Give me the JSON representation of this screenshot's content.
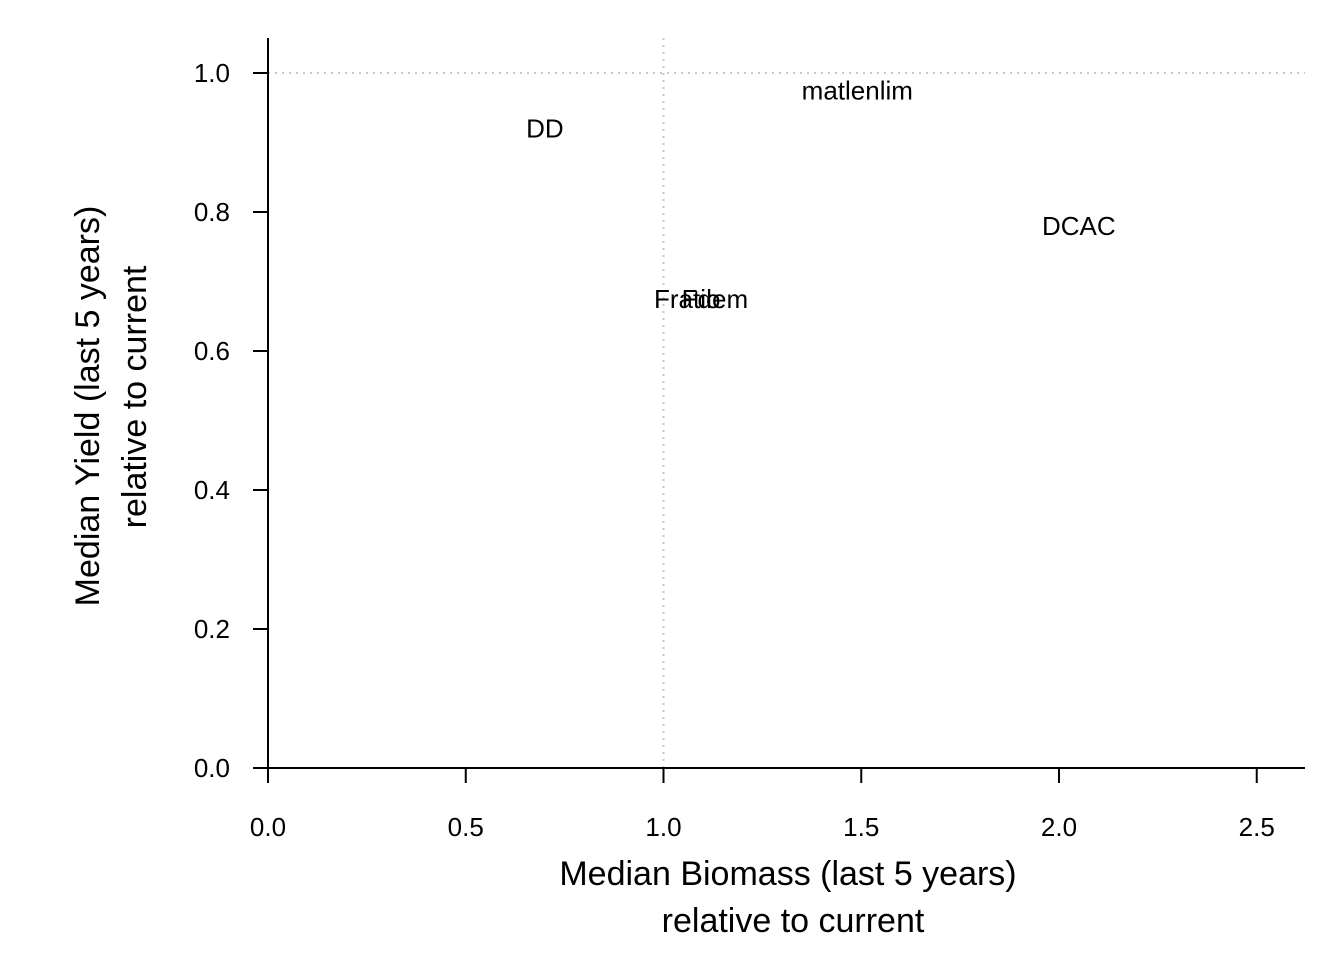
{
  "chart_data": {
    "type": "scatter",
    "title": "",
    "xlabel_lines": [
      "Median Biomass (last 5 years)",
      "relative to current"
    ],
    "ylabel_lines": [
      "Median Yield (last 5 years)",
      "relative to current"
    ],
    "xlim": [
      0,
      2.62
    ],
    "ylim": [
      0,
      1.05
    ],
    "xticks": [
      0,
      0.5,
      1,
      1.5,
      2,
      2.5
    ],
    "xtick_labels": [
      "0.0",
      "0.5",
      "1.0",
      "1.5",
      "2.0",
      "2.5"
    ],
    "yticks": [
      0,
      0.2,
      0.4,
      0.6,
      0.8,
      1.0
    ],
    "ytick_labels": [
      "0.0",
      "0.2",
      "0.4",
      "0.6",
      "0.8",
      "1.0"
    ],
    "reference_lines": {
      "x": 1.0,
      "y": 1.0,
      "style": "dotted",
      "color": "#c8c8c8"
    },
    "points": [
      {
        "label": "DD",
        "x": 0.7,
        "y": 0.92
      },
      {
        "label": "matlenlim",
        "x": 1.49,
        "y": 0.975
      },
      {
        "label": "DCAC",
        "x": 2.05,
        "y": 0.78
      },
      {
        "label": "Fratio",
        "x": 1.06,
        "y": 0.675
      },
      {
        "label": "Fdem",
        "x": 1.13,
        "y": 0.675
      }
    ],
    "grid": false,
    "legend": "none"
  }
}
